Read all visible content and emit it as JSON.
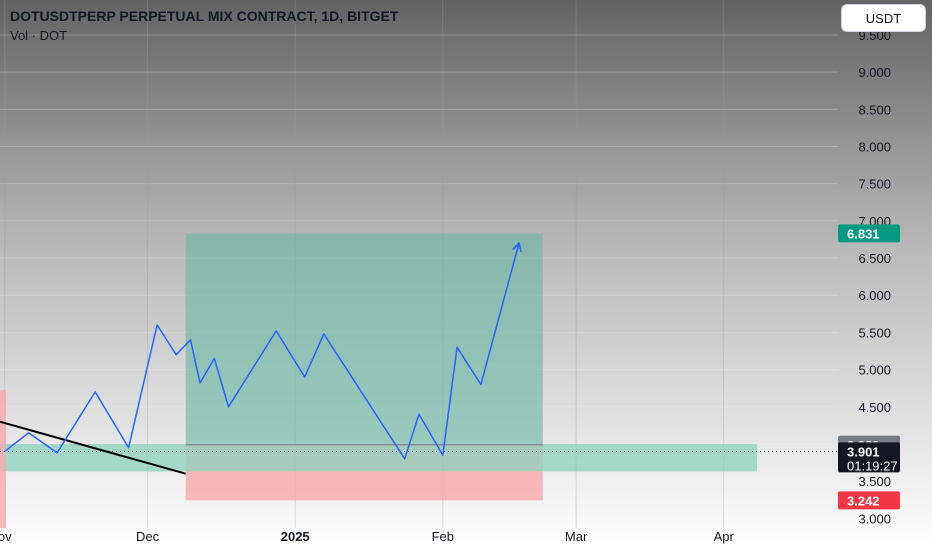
{
  "header": {
    "title": "DOTUSDTPERP PERPETUAL MIX CONTRACT, 1D, BITGET",
    "subtitle": "Vol · DOT",
    "currency_button": "USDT"
  },
  "chart_data": {
    "type": "line",
    "title": "DOTUSDTPERP PERPETUAL MIX CONTRACT, 1D, BITGET",
    "xlabel": "",
    "ylabel": "",
    "ylim": [
      2.87,
      9.97
    ],
    "xlim": [
      "2024-10-31",
      "2025-04-25"
    ],
    "x_ticks": [
      {
        "label": "ov",
        "date": "2024-11-01"
      },
      {
        "label": "Dec",
        "date": "2024-12-01"
      },
      {
        "label": "2025",
        "date": "2025-01-01",
        "bold": true
      },
      {
        "label": "Feb",
        "date": "2025-02-01"
      },
      {
        "label": "Mar",
        "date": "2025-03-01"
      },
      {
        "label": "Apr",
        "date": "2025-04-01"
      }
    ],
    "y_ticks": [
      "3.000",
      "3.500",
      "4.000",
      "4.500",
      "5.000",
      "5.500",
      "6.000",
      "6.500",
      "7.000",
      "7.500",
      "8.000",
      "8.500",
      "9.000",
      "9.500"
    ],
    "grid": true,
    "projection_path": {
      "x": [
        "2024-11-01",
        "2024-11-06",
        "2024-11-12",
        "2024-11-20",
        "2024-11-27",
        "2024-12-03",
        "2024-12-07",
        "2024-12-10",
        "2024-12-12",
        "2024-12-15",
        "2024-12-18",
        "2024-12-28",
        "2025-01-03",
        "2025-01-07",
        "2025-01-24",
        "2025-01-27",
        "2025-02-01",
        "2025-02-04",
        "2025-02-09",
        "2025-02-17"
      ],
      "y": [
        3.9,
        4.15,
        3.88,
        4.7,
        3.95,
        5.6,
        5.2,
        5.4,
        4.82,
        5.15,
        4.5,
        5.52,
        4.9,
        5.48,
        3.8,
        4.4,
        3.85,
        5.3,
        4.8,
        6.7
      ]
    },
    "trend_line": {
      "x": [
        "2024-10-31",
        "2024-12-09"
      ],
      "y": [
        4.3,
        3.6
      ]
    },
    "position": {
      "start": "2024-12-09",
      "end": "2025-02-22",
      "entry": 3.989,
      "target": 6.831,
      "stop": 3.242
    },
    "support_zone": {
      "start": "2024-10-31",
      "end": "2025-04-08",
      "top": 4.0,
      "bottom": 3.63
    },
    "current_price": 3.901,
    "price_badges": [
      {
        "label": "6.831",
        "value": 6.831,
        "color": "#089981"
      },
      {
        "label": "3.989",
        "value": 3.989,
        "color": "#787b86"
      },
      {
        "label": "3.901",
        "value": 3.901,
        "color": "#131722",
        "countdown": "01:19:27"
      },
      {
        "label": "3.242",
        "value": 3.242,
        "color": "#f23645"
      }
    ],
    "colors": {
      "line": "#2962ff",
      "target_zone": "#6bb7a4",
      "stop_zone": "#f7a9ae",
      "support_zone": "#88d1bb",
      "trend_line": "#000000"
    }
  }
}
